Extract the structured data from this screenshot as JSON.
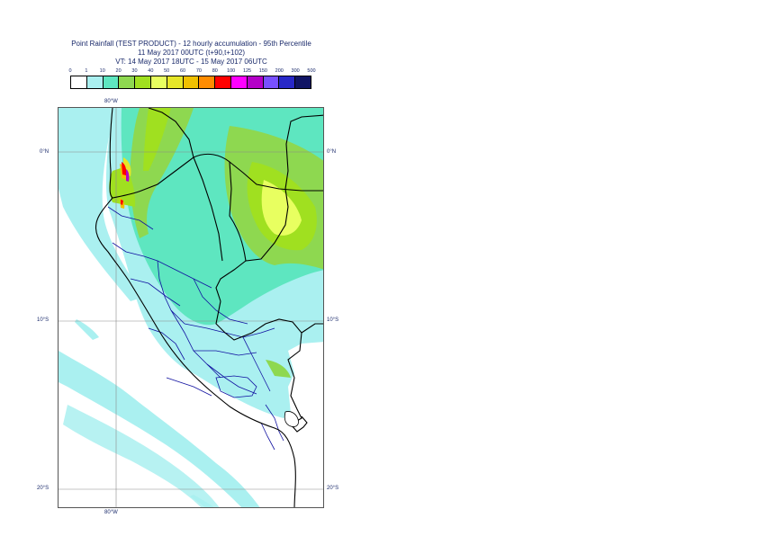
{
  "title": {
    "line1": "Point Rainfall (TEST PRODUCT) - 12 hourly accumulation - 95th Percentile",
    "line2": "11 May 2017 00UTC (t+90,t+102)",
    "line3": "VT: 14 May 2017 18UTC - 15 May 2017 06UTC"
  },
  "legend": {
    "ticks": [
      "0",
      "1",
      "10",
      "20",
      "30",
      "40",
      "50",
      "60",
      "70",
      "80",
      "100",
      "125",
      "150",
      "200",
      "300",
      "500"
    ],
    "colors": [
      "#ffffff",
      "#aaf0f0",
      "#5ee6c0",
      "#8ed850",
      "#a0e020",
      "#e8ff60",
      "#e6e628",
      "#f0c000",
      "#ff8c00",
      "#ff0000",
      "#ff00ff",
      "#b400c8",
      "#7850ff",
      "#2828c8",
      "#101464"
    ]
  },
  "axes": {
    "top_lon": "80°W",
    "bottom_lon": "80°W",
    "lat_left": [
      "0°N",
      "10°S",
      "20°S"
    ],
    "lat_right": [
      "0°N",
      "10°S",
      "20°S"
    ]
  },
  "map_colors": {
    "land": "#ffffff",
    "light_rain": "#aaf0f0",
    "moderate": "#5ee6c0",
    "heavier": "#8ed850",
    "green_yellow": "#a0e020",
    "yellow": "#e8ff60",
    "gold": "#e6e628",
    "orange": "#f0c000",
    "peak_red": "#ff0000",
    "peak_magenta": "#b400c8",
    "grid": "#8a8a8a",
    "coast": "#000000",
    "regions": "#1010a0"
  }
}
